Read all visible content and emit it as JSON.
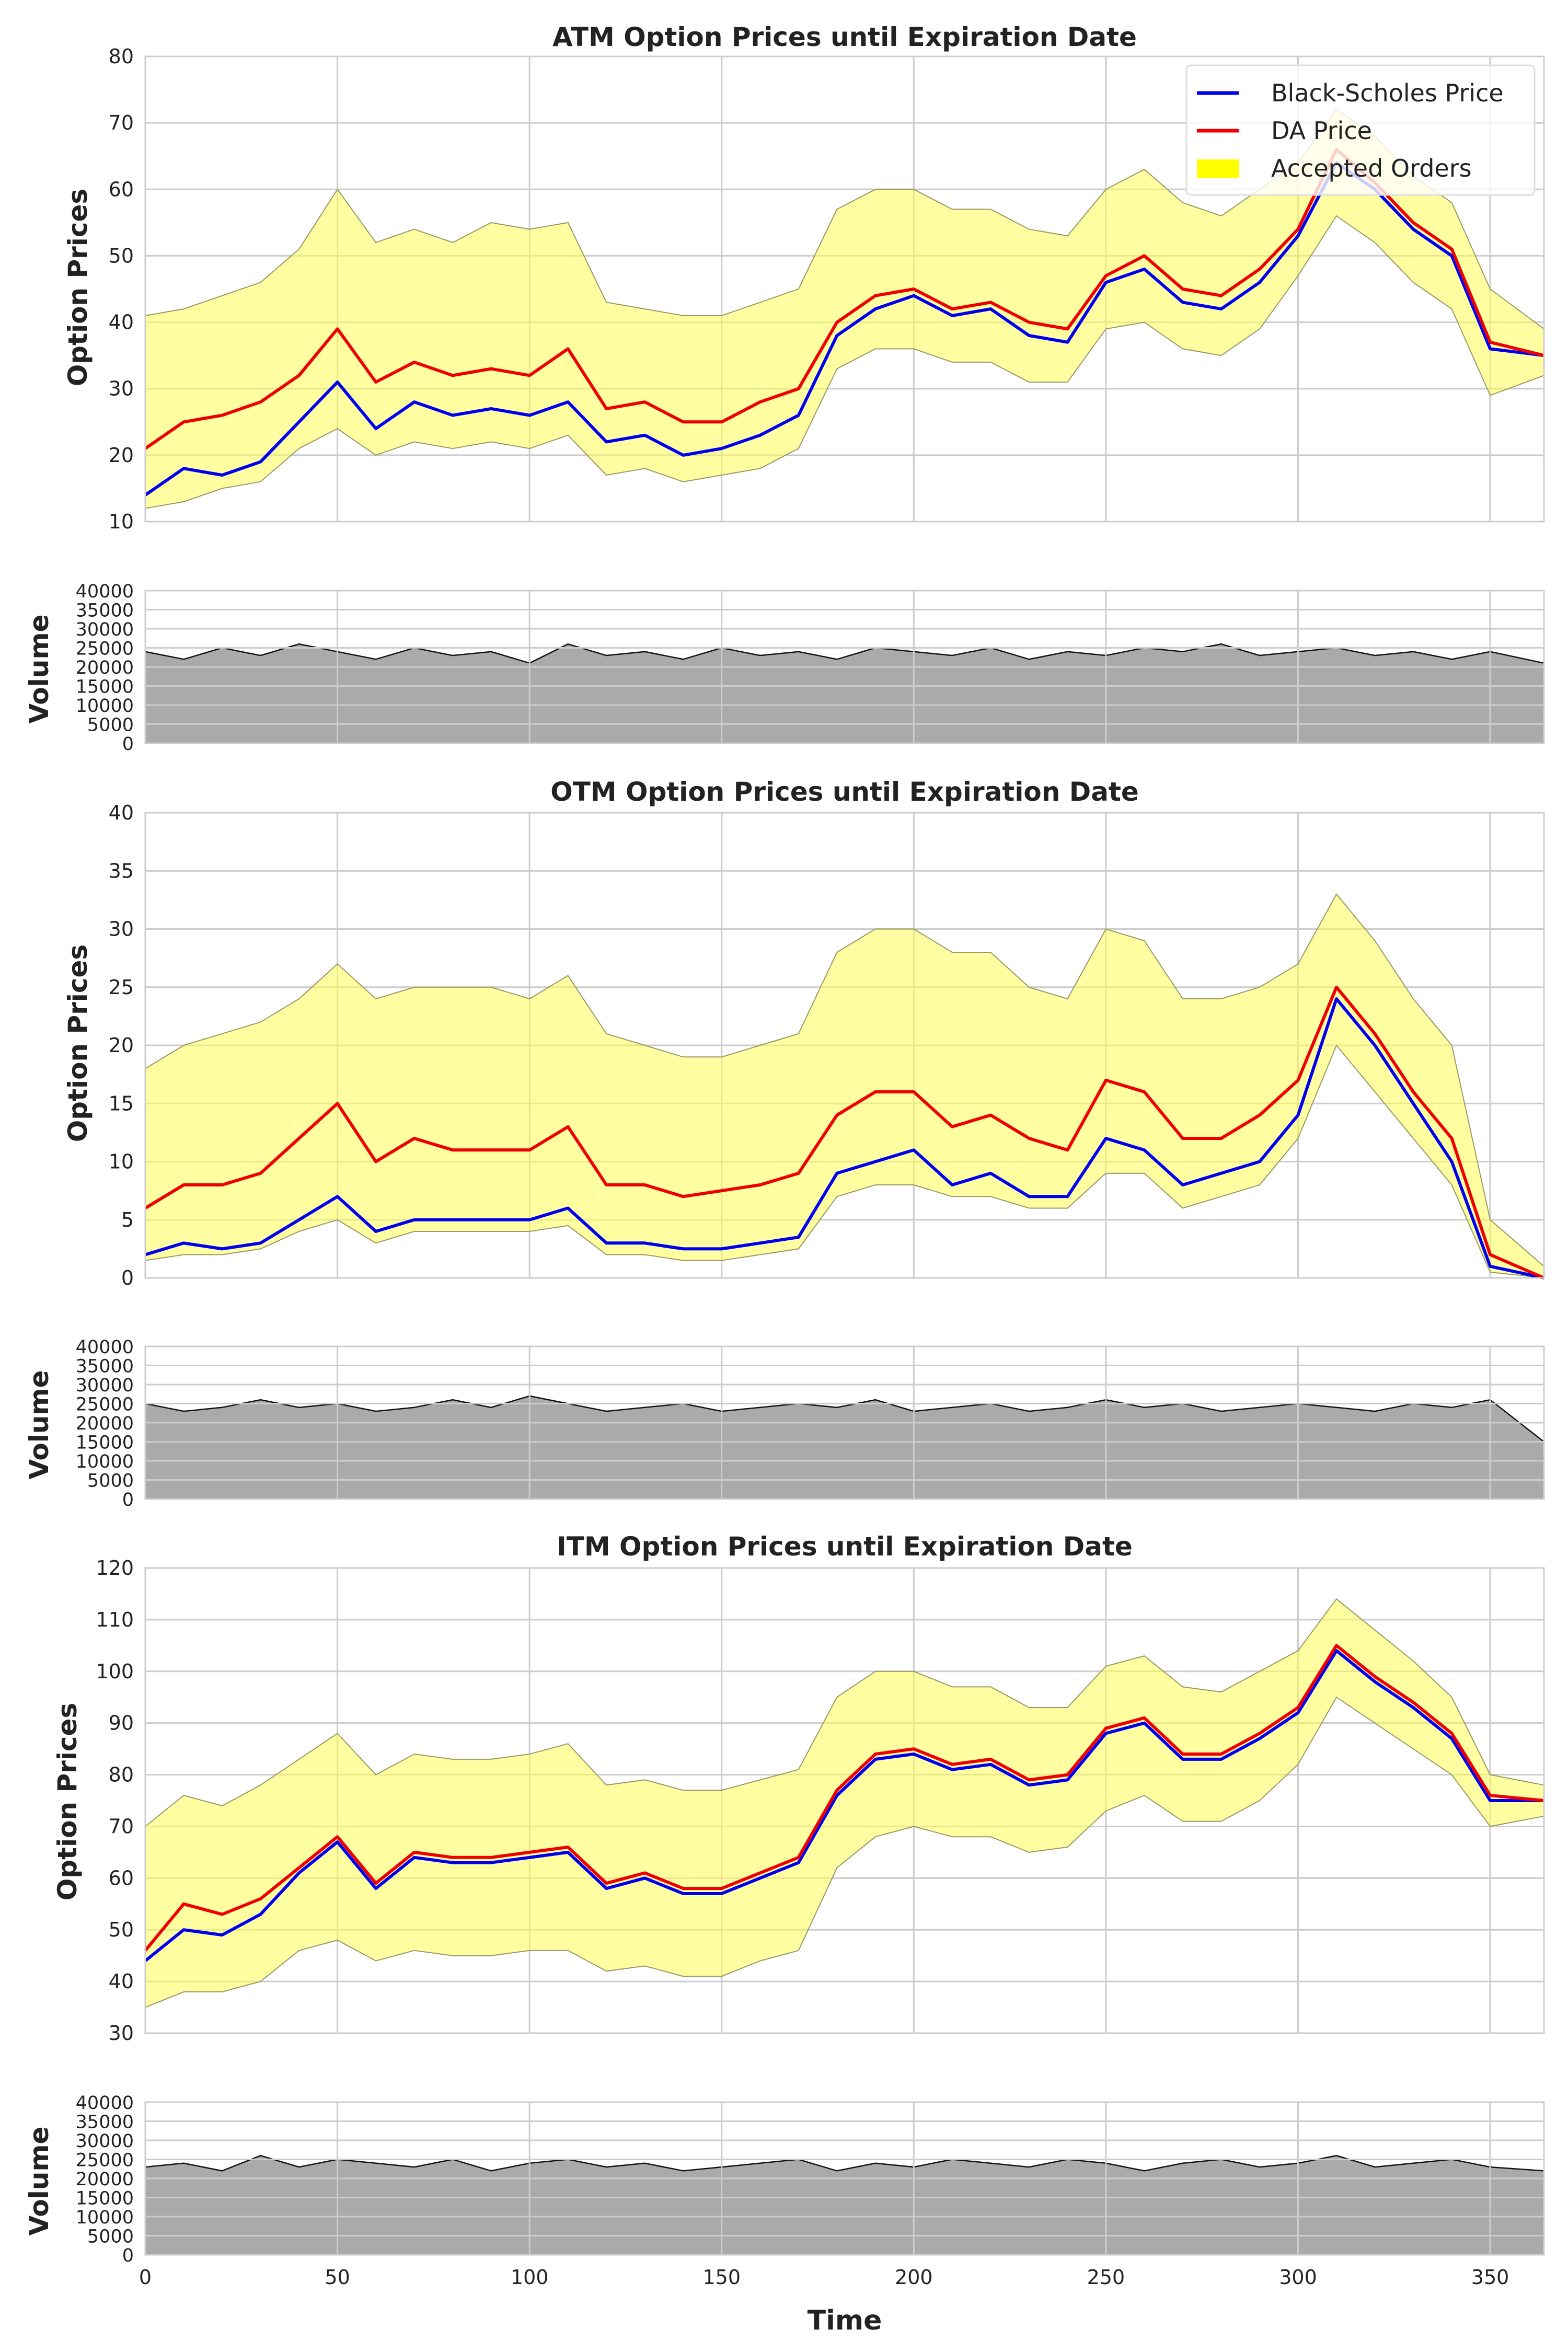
{
  "chart_data": [
    {
      "type": "line",
      "title": "ATM Option Prices until Expiration Date",
      "ylabel": "Option Prices",
      "xlabel": "",
      "xlim": [
        0,
        364
      ],
      "ylim": [
        10,
        80
      ],
      "x_ticks": [
        0,
        50,
        100,
        150,
        200,
        250,
        300,
        350
      ],
      "y_ticks": [
        10,
        20,
        30,
        40,
        50,
        60,
        70,
        80
      ],
      "show_x_tick_labels": false,
      "grid": true,
      "legend": {
        "placement": "top-right",
        "entries": [
          "Black-Scholes Price",
          "DA Price",
          "Accepted Orders"
        ]
      },
      "x": [
        0,
        10,
        20,
        30,
        40,
        50,
        60,
        70,
        80,
        90,
        100,
        110,
        120,
        130,
        140,
        150,
        160,
        170,
        180,
        190,
        200,
        210,
        220,
        230,
        240,
        250,
        260,
        270,
        280,
        290,
        300,
        310,
        320,
        330,
        340,
        350,
        364
      ],
      "series": [
        {
          "name": "Black-Scholes Price",
          "color": "#0000ee",
          "values": [
            14,
            18,
            17,
            19,
            25,
            31,
            24,
            28,
            26,
            27,
            26,
            28,
            22,
            23,
            20,
            21,
            23,
            26,
            38,
            42,
            44,
            41,
            42,
            38,
            37,
            46,
            48,
            43,
            42,
            46,
            53,
            64,
            60,
            54,
            50,
            36,
            35
          ]
        },
        {
          "name": "DA Price",
          "color": "#ee0000",
          "values": [
            21,
            25,
            26,
            28,
            32,
            39,
            31,
            34,
            32,
            33,
            32,
            36,
            27,
            28,
            25,
            25,
            28,
            30,
            40,
            44,
            45,
            42,
            43,
            40,
            39,
            47,
            50,
            45,
            44,
            48,
            54,
            66,
            61,
            55,
            51,
            37,
            35
          ]
        },
        {
          "name": "Accepted Orders",
          "type": "area",
          "color": "#ffff00",
          "lower": [
            12,
            13,
            15,
            16,
            21,
            24,
            20,
            22,
            21,
            22,
            21,
            23,
            17,
            18,
            16,
            17,
            18,
            21,
            33,
            36,
            36,
            34,
            34,
            31,
            31,
            39,
            40,
            36,
            35,
            39,
            47,
            56,
            52,
            46,
            42,
            29,
            32
          ],
          "upper": [
            41,
            42,
            44,
            46,
            51,
            60,
            52,
            54,
            52,
            55,
            54,
            55,
            43,
            42,
            41,
            41,
            43,
            45,
            57,
            60,
            60,
            57,
            57,
            54,
            53,
            60,
            63,
            58,
            56,
            60,
            64,
            72,
            68,
            62,
            58,
            45,
            39
          ]
        }
      ]
    },
    {
      "type": "area",
      "title": "",
      "ylabel": "Volume",
      "xlim": [
        0,
        364
      ],
      "ylim": [
        0,
        40000
      ],
      "y_ticks": [
        0,
        5000,
        10000,
        15000,
        20000,
        25000,
        30000,
        35000,
        40000
      ],
      "show_x_tick_labels": false,
      "grid": true,
      "x": [
        0,
        10,
        20,
        30,
        40,
        50,
        60,
        70,
        80,
        90,
        100,
        110,
        120,
        130,
        140,
        150,
        160,
        170,
        180,
        190,
        200,
        210,
        220,
        230,
        240,
        250,
        260,
        270,
        280,
        290,
        300,
        310,
        320,
        330,
        340,
        350,
        364
      ],
      "series": [
        {
          "name": "Volume",
          "color": "#aaaaaa",
          "values": [
            24000,
            22000,
            25000,
            23000,
            26000,
            24000,
            22000,
            25000,
            23000,
            24000,
            21000,
            26000,
            23000,
            24000,
            22000,
            25000,
            23000,
            24000,
            22000,
            25000,
            24000,
            23000,
            25000,
            22000,
            24000,
            23000,
            25000,
            24000,
            26000,
            23000,
            24000,
            25000,
            23000,
            24000,
            22000,
            24000,
            21000
          ]
        }
      ]
    },
    {
      "type": "line",
      "title": "OTM Option Prices until Expiration Date",
      "ylabel": "Option Prices",
      "xlabel": "",
      "xlim": [
        0,
        364
      ],
      "ylim": [
        0,
        40
      ],
      "x_ticks": [
        0,
        50,
        100,
        150,
        200,
        250,
        300,
        350
      ],
      "y_ticks": [
        0,
        5,
        10,
        15,
        20,
        25,
        30,
        35,
        40
      ],
      "show_x_tick_labels": false,
      "grid": true,
      "x": [
        0,
        10,
        20,
        30,
        40,
        50,
        60,
        70,
        80,
        90,
        100,
        110,
        120,
        130,
        140,
        150,
        160,
        170,
        180,
        190,
        200,
        210,
        220,
        230,
        240,
        250,
        260,
        270,
        280,
        290,
        300,
        310,
        320,
        330,
        340,
        350,
        364
      ],
      "series": [
        {
          "name": "Black-Scholes Price",
          "color": "#0000ee",
          "values": [
            2,
            3,
            2.5,
            3,
            5,
            7,
            4,
            5,
            5,
            5,
            5,
            6,
            3,
            3,
            2.5,
            2.5,
            3,
            3.5,
            9,
            10,
            11,
            8,
            9,
            7,
            7,
            12,
            11,
            8,
            9,
            10,
            14,
            24,
            20,
            15,
            10,
            1,
            0
          ]
        },
        {
          "name": "DA Price",
          "color": "#ee0000",
          "values": [
            6,
            8,
            8,
            9,
            12,
            15,
            10,
            12,
            11,
            11,
            11,
            13,
            8,
            8,
            7,
            7.5,
            8,
            9,
            14,
            16,
            16,
            13,
            14,
            12,
            11,
            17,
            16,
            12,
            12,
            14,
            17,
            25,
            21,
            16,
            12,
            2,
            0
          ]
        },
        {
          "name": "Accepted Orders",
          "type": "area",
          "color": "#ffff00",
          "lower": [
            1.5,
            2,
            2,
            2.5,
            4,
            5,
            3,
            4,
            4,
            4,
            4,
            4.5,
            2,
            2,
            1.5,
            1.5,
            2,
            2.5,
            7,
            8,
            8,
            7,
            7,
            6,
            6,
            9,
            9,
            6,
            7,
            8,
            12,
            20,
            16,
            12,
            8,
            0.5,
            0
          ],
          "upper": [
            18,
            20,
            21,
            22,
            24,
            27,
            24,
            25,
            25,
            25,
            24,
            26,
            21,
            20,
            19,
            19,
            20,
            21,
            28,
            30,
            30,
            28,
            28,
            25,
            24,
            30,
            29,
            24,
            24,
            25,
            27,
            33,
            29,
            24,
            20,
            5,
            1
          ]
        }
      ]
    },
    {
      "type": "area",
      "title": "",
      "ylabel": "Volume",
      "xlim": [
        0,
        364
      ],
      "ylim": [
        0,
        40000
      ],
      "y_ticks": [
        0,
        5000,
        10000,
        15000,
        20000,
        25000,
        30000,
        35000,
        40000
      ],
      "show_x_tick_labels": false,
      "grid": true,
      "x": [
        0,
        10,
        20,
        30,
        40,
        50,
        60,
        70,
        80,
        90,
        100,
        110,
        120,
        130,
        140,
        150,
        160,
        170,
        180,
        190,
        200,
        210,
        220,
        230,
        240,
        250,
        260,
        270,
        280,
        290,
        300,
        310,
        320,
        330,
        340,
        350,
        364
      ],
      "series": [
        {
          "name": "Volume",
          "color": "#aaaaaa",
          "values": [
            25000,
            23000,
            24000,
            26000,
            24000,
            25000,
            23000,
            24000,
            26000,
            24000,
            27000,
            25000,
            23000,
            24000,
            25000,
            23000,
            24000,
            25000,
            24000,
            26000,
            23000,
            24000,
            25000,
            23000,
            24000,
            26000,
            24000,
            25000,
            23000,
            24000,
            25000,
            24000,
            23000,
            25000,
            24000,
            26000,
            15000
          ]
        }
      ]
    },
    {
      "type": "line",
      "title": "ITM Option Prices until Expiration Date",
      "ylabel": "Option Prices",
      "xlabel": "",
      "xlim": [
        0,
        364
      ],
      "ylim": [
        30,
        120
      ],
      "x_ticks": [
        0,
        50,
        100,
        150,
        200,
        250,
        300,
        350
      ],
      "y_ticks": [
        30,
        40,
        50,
        60,
        70,
        80,
        90,
        100,
        110,
        120
      ],
      "show_x_tick_labels": false,
      "grid": true,
      "x": [
        0,
        10,
        20,
        30,
        40,
        50,
        60,
        70,
        80,
        90,
        100,
        110,
        120,
        130,
        140,
        150,
        160,
        170,
        180,
        190,
        200,
        210,
        220,
        230,
        240,
        250,
        260,
        270,
        280,
        290,
        300,
        310,
        320,
        330,
        340,
        350,
        364
      ],
      "series": [
        {
          "name": "Black-Scholes Price",
          "color": "#0000ee",
          "values": [
            44,
            50,
            49,
            53,
            61,
            67,
            58,
            64,
            63,
            63,
            64,
            65,
            58,
            60,
            57,
            57,
            60,
            63,
            76,
            83,
            84,
            81,
            82,
            78,
            79,
            88,
            90,
            83,
            83,
            87,
            92,
            104,
            98,
            93,
            87,
            75,
            75
          ]
        },
        {
          "name": "DA Price",
          "color": "#ee0000",
          "values": [
            46,
            55,
            53,
            56,
            62,
            68,
            59,
            65,
            64,
            64,
            65,
            66,
            59,
            61,
            58,
            58,
            61,
            64,
            77,
            84,
            85,
            82,
            83,
            79,
            80,
            89,
            91,
            84,
            84,
            88,
            93,
            105,
            99,
            94,
            88,
            76,
            75
          ]
        },
        {
          "name": "Accepted Orders",
          "type": "area",
          "color": "#ffff00",
          "lower": [
            35,
            38,
            38,
            40,
            46,
            48,
            44,
            46,
            45,
            45,
            46,
            46,
            42,
            43,
            41,
            41,
            44,
            46,
            62,
            68,
            70,
            68,
            68,
            65,
            66,
            73,
            76,
            71,
            71,
            75,
            82,
            95,
            90,
            85,
            80,
            70,
            72
          ],
          "upper": [
            70,
            76,
            74,
            78,
            83,
            88,
            80,
            84,
            83,
            83,
            84,
            86,
            78,
            79,
            77,
            77,
            79,
            81,
            95,
            100,
            100,
            97,
            97,
            93,
            93,
            101,
            103,
            97,
            96,
            100,
            104,
            114,
            108,
            102,
            95,
            80,
            78
          ]
        }
      ]
    },
    {
      "type": "area",
      "title": "",
      "ylabel": "Volume",
      "xlabel": "Time",
      "xlim": [
        0,
        364
      ],
      "ylim": [
        0,
        40000
      ],
      "x_ticks": [
        0,
        50,
        100,
        150,
        200,
        250,
        300,
        350
      ],
      "y_ticks": [
        0,
        5000,
        10000,
        15000,
        20000,
        25000,
        30000,
        35000,
        40000
      ],
      "show_x_tick_labels": true,
      "grid": true,
      "x": [
        0,
        10,
        20,
        30,
        40,
        50,
        60,
        70,
        80,
        90,
        100,
        110,
        120,
        130,
        140,
        150,
        160,
        170,
        180,
        190,
        200,
        210,
        220,
        230,
        240,
        250,
        260,
        270,
        280,
        290,
        300,
        310,
        320,
        330,
        340,
        350,
        364
      ],
      "series": [
        {
          "name": "Volume",
          "color": "#aaaaaa",
          "values": [
            23000,
            24000,
            22000,
            26000,
            23000,
            25000,
            24000,
            23000,
            25000,
            22000,
            24000,
            25000,
            23000,
            24000,
            22000,
            23000,
            24000,
            25000,
            22000,
            24000,
            23000,
            25000,
            24000,
            23000,
            25000,
            24000,
            22000,
            24000,
            25000,
            23000,
            24000,
            26000,
            23000,
            24000,
            25000,
            23000,
            22000
          ]
        }
      ]
    }
  ]
}
